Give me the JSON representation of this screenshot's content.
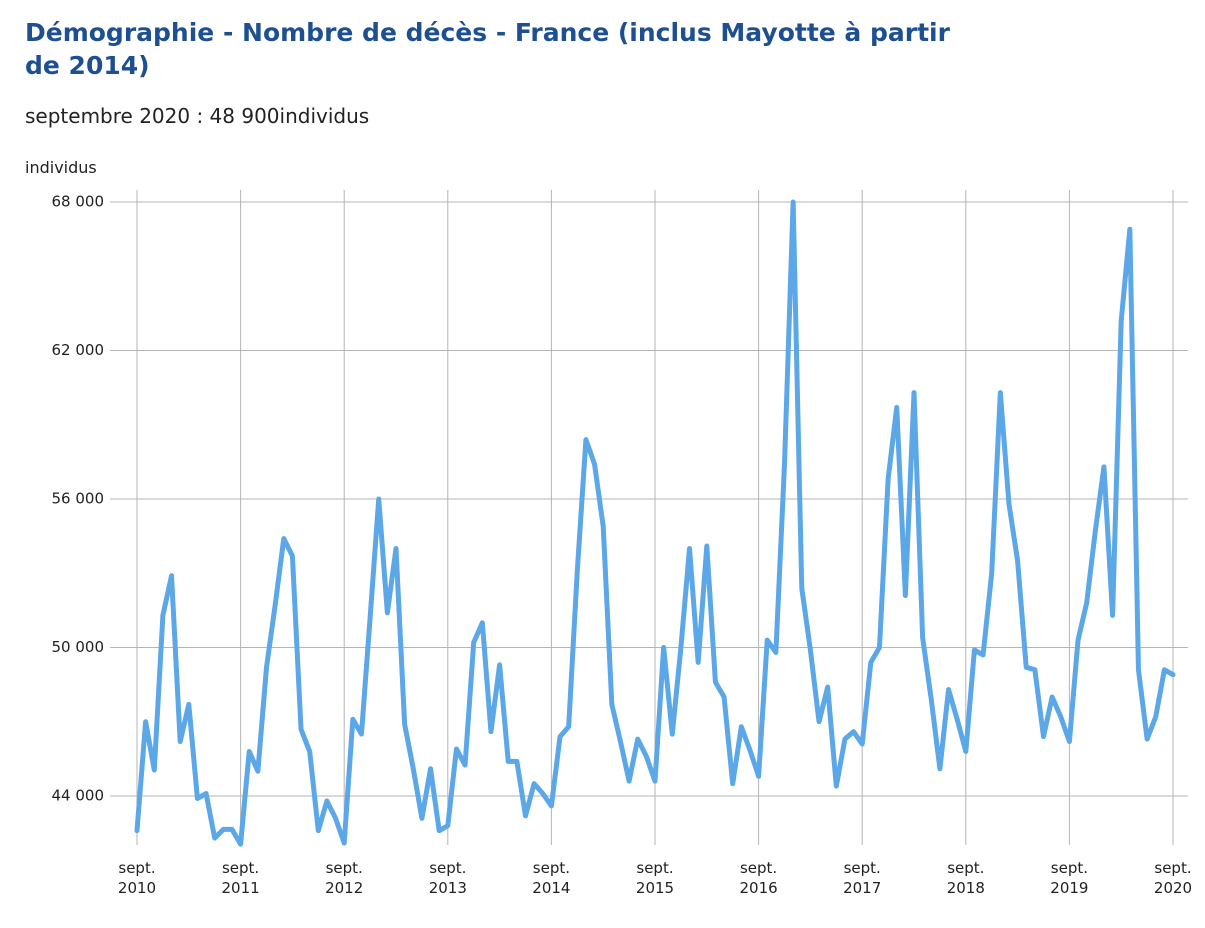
{
  "chart_data": {
    "type": "line",
    "title": "Démographie - Nombre de décès - France (inclus Mayotte à partir de 2014)",
    "subtitle": "septembre 2020 : 48 900individus",
    "y_label": "individus",
    "categories": [
      "sept. 2010",
      null,
      null,
      null,
      null,
      null,
      null,
      null,
      null,
      null,
      null,
      null,
      "sept. 2011",
      null,
      null,
      null,
      null,
      null,
      null,
      null,
      null,
      null,
      null,
      null,
      "sept. 2012",
      null,
      null,
      null,
      null,
      null,
      null,
      null,
      null,
      null,
      null,
      null,
      "sept. 2013",
      null,
      null,
      null,
      null,
      null,
      null,
      null,
      null,
      null,
      null,
      null,
      "sept. 2014",
      null,
      null,
      null,
      null,
      null,
      null,
      null,
      null,
      null,
      null,
      null,
      "sept. 2015",
      null,
      null,
      null,
      null,
      null,
      null,
      null,
      null,
      null,
      null,
      null,
      "sept. 2016",
      null,
      null,
      null,
      null,
      null,
      null,
      null,
      null,
      null,
      null,
      null,
      "sept. 2017",
      null,
      null,
      null,
      null,
      null,
      null,
      null,
      null,
      null,
      null,
      null,
      "sept. 2018",
      null,
      null,
      null,
      null,
      null,
      null,
      null,
      null,
      null,
      null,
      null,
      "sept. 2019",
      null,
      null,
      null,
      null,
      null,
      null,
      null,
      null,
      null,
      null,
      null,
      "sept. 2020"
    ],
    "series": [
      {
        "name": "individus",
        "color": "#5ba7e8",
        "values": [
          42600,
          47000,
          45050,
          51300,
          52900,
          46200,
          47700,
          43900,
          44100,
          42300,
          42650,
          42650,
          42050,
          45800,
          45000,
          49200,
          51700,
          54400,
          53700,
          46700,
          45800,
          42600,
          43800,
          43100,
          42100,
          47100,
          46500,
          51200,
          56000,
          51400,
          54000,
          46900,
          45100,
          43100,
          45100,
          42600,
          42800,
          45900,
          45250,
          50200,
          51000,
          46600,
          49300,
          45400,
          45400,
          43200,
          44500,
          44100,
          43600,
          46400,
          46800,
          53100,
          58400,
          57400,
          54900,
          47700,
          46200,
          44600,
          46300,
          45600,
          44600,
          50000,
          46500,
          50000,
          54000,
          49400,
          54100,
          48600,
          48000,
          44500,
          46800,
          45850,
          44800,
          50300,
          49800,
          57400,
          68000,
          52400,
          49900,
          47000,
          48400,
          44400,
          46300,
          46600,
          46100,
          49400,
          50000,
          56800,
          59700,
          52100,
          60300,
          50400,
          47900,
          45100,
          48300,
          47100,
          45800,
          49900,
          49700,
          53000,
          60300,
          55800,
          53500,
          49200,
          49100,
          46400,
          48000,
          47200,
          46200,
          50300,
          51800,
          54700,
          57300,
          51300,
          63200,
          66900,
          49100,
          46300,
          47200,
          49100,
          48900
        ]
      }
    ],
    "ylim": [
      41500,
      68000
    ],
    "yticks": [
      {
        "value": 44000,
        "label": "44 000"
      },
      {
        "value": 50000,
        "label": "50 000"
      },
      {
        "value": 56000,
        "label": "56 000"
      },
      {
        "value": 62000,
        "label": "62 000"
      },
      {
        "value": 68000,
        "label": "68 000"
      }
    ],
    "grid": true
  }
}
